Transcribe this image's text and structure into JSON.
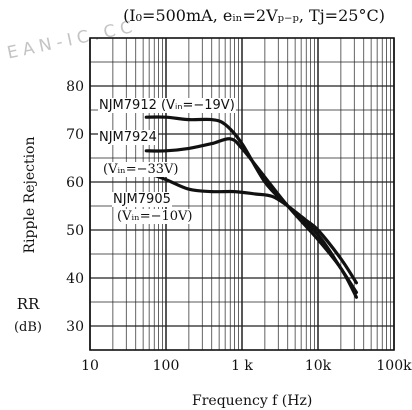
{
  "watermark": "EAN-IC.CC",
  "chart_data": {
    "type": "line",
    "title": "",
    "subtitle": "(I₀=500mA, eᵢₙ=2Vₚ₋ₚ, Tj=25°C)",
    "ylabel": "Ripple Rejection",
    "y_symbol": "RR",
    "y_unit": "(dB)",
    "xlabel": "Frequency  f  (Hz)",
    "x_scale": "log",
    "xlim": [
      10,
      100000
    ],
    "ylim": [
      25,
      90
    ],
    "x_ticks": [
      {
        "value": 10,
        "label": "10"
      },
      {
        "value": 100,
        "label": "100"
      },
      {
        "value": 1000,
        "label": "1 k"
      },
      {
        "value": 10000,
        "label": "10k"
      },
      {
        "value": 100000,
        "label": "100k"
      }
    ],
    "y_ticks": [
      {
        "value": 30,
        "label": "30"
      },
      {
        "value": 40,
        "label": "40"
      },
      {
        "value": 50,
        "label": "50"
      },
      {
        "value": 60,
        "label": "60"
      },
      {
        "value": 70,
        "label": "70"
      },
      {
        "value": 80,
        "label": "80"
      }
    ],
    "grid": true,
    "series": [
      {
        "name": "NJM7912",
        "condition": "(Vᵢₙ=−19V)",
        "color": "#111111",
        "x": [
          55,
          100,
          200,
          400,
          600,
          1000,
          2000,
          4000,
          10000,
          20000,
          32000
        ],
        "y": [
          73.5,
          73.5,
          73,
          73,
          72,
          68,
          60,
          55,
          49,
          42,
          37
        ]
      },
      {
        "name": "NJM7924",
        "condition": "(Vᵢₙ=−33V)",
        "color": "#111111",
        "x": [
          55,
          100,
          200,
          400,
          700,
          1000,
          2000,
          4000,
          10000,
          20000,
          32000
        ],
        "y": [
          66.5,
          66.5,
          67,
          68,
          69,
          67,
          61,
          55,
          48,
          42,
          36
        ]
      },
      {
        "name": "NJM7905",
        "condition": "(Vᵢₙ=−10V)",
        "color": "#111111",
        "x": [
          55,
          100,
          200,
          400,
          800,
          1500,
          2500,
          4000,
          7000,
          10000,
          20000,
          32000
        ],
        "y": [
          62,
          60.5,
          58.5,
          58,
          58,
          57.5,
          57,
          55,
          52,
          50,
          44,
          39
        ]
      }
    ]
  }
}
